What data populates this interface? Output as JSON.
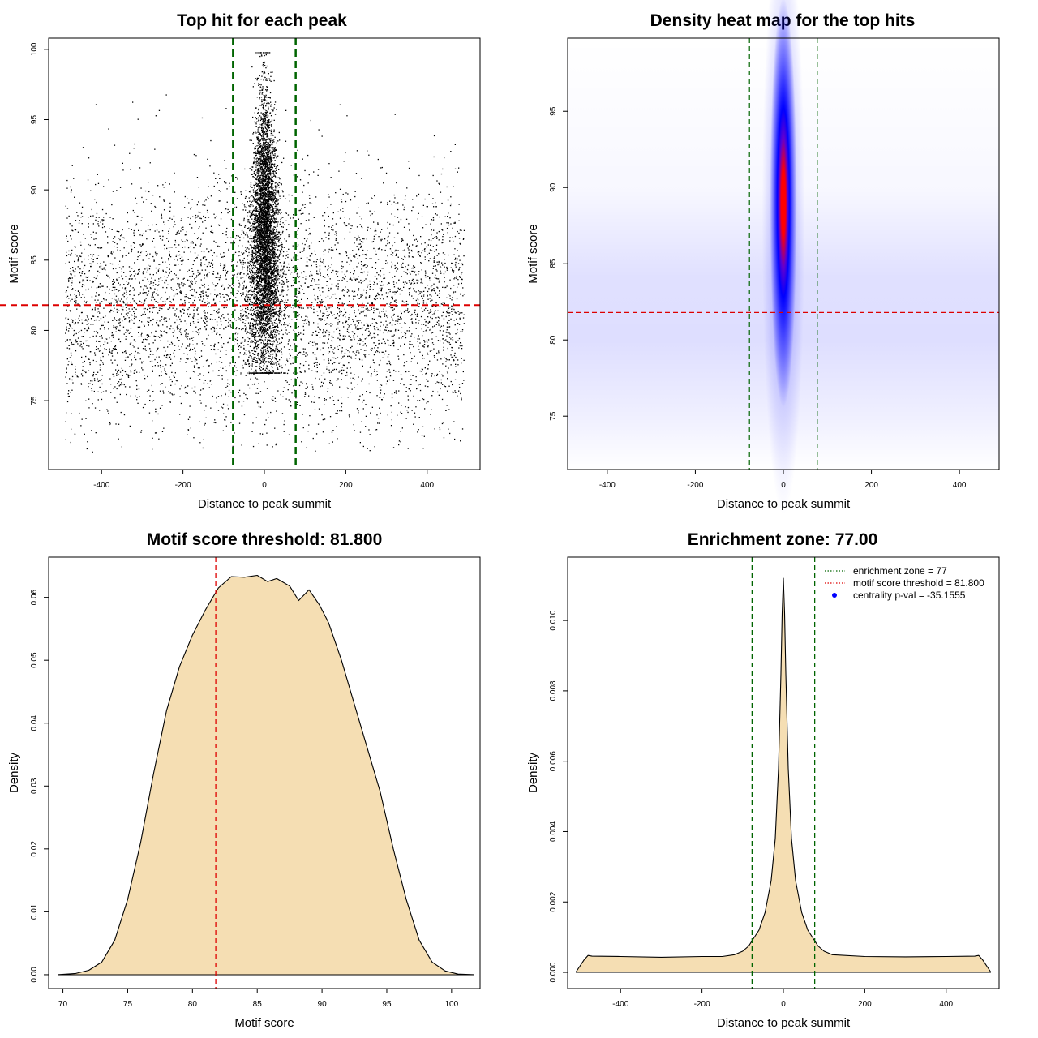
{
  "colors": {
    "scatter_point": "#000000",
    "threshold_line": "#dd0000",
    "zone_line": "#006400",
    "density_fill": "#f5deb3",
    "density_line": "#000000",
    "heat_low": "#ffffff",
    "heat_mid": "#0000ff",
    "heat_high": "#ff0000",
    "legend_dot": "#0000ff"
  },
  "chart_data": [
    {
      "id": "scatter",
      "type": "scatter",
      "title": "Top hit for each peak",
      "xlabel": "Distance to peak summit",
      "ylabel": "Motif score",
      "xlim": [
        -530,
        530
      ],
      "ylim": [
        70.1,
        100.8
      ],
      "xticks": [
        -400,
        -200,
        0,
        200,
        400
      ],
      "yticks": [
        75,
        80,
        85,
        90,
        95,
        100
      ],
      "threshold_y": 81.8,
      "zone_x": [
        -77,
        77
      ],
      "background": {
        "count": 5200,
        "x_range": [
          -490,
          490
        ],
        "y_mean": 81.8,
        "y_sd": 4.2,
        "y_range": [
          71.3,
          97.5
        ]
      },
      "central": {
        "count": 5200,
        "x_sd": 22,
        "y_mean": 86.5,
        "y_sd": 4.8,
        "y_range": [
          77,
          99.8
        ]
      }
    },
    {
      "id": "heatmap",
      "type": "heatmap",
      "title": "Density heat map for the top hits",
      "xlabel": "Distance to peak summit",
      "ylabel": "Motif score",
      "xlim": [
        -490,
        490
      ],
      "ylim": [
        71.5,
        99.8
      ],
      "xticks": [
        -400,
        -200,
        0,
        200,
        400
      ],
      "yticks": [
        75,
        80,
        85,
        90,
        95
      ],
      "threshold_y": 81.8,
      "zone_x": [
        -77,
        77
      ],
      "peak": {
        "x": 0,
        "y": 89,
        "x_sd": 16,
        "y_sd": 4.2
      },
      "background": {
        "y_mean": 81.8,
        "y_sd": 4
      }
    },
    {
      "id": "score-density",
      "type": "area",
      "title": "Motif score threshold: 81.800",
      "xlabel": "Motif score",
      "ylabel": "Density",
      "xlim": [
        68.9,
        102.2
      ],
      "ylim": [
        -0.0022,
        0.0664
      ],
      "xticks": [
        70,
        75,
        80,
        85,
        90,
        95,
        100
      ],
      "yticks": [
        0.0,
        0.01,
        0.02,
        0.03,
        0.04,
        0.05,
        0.06
      ],
      "ytick_labels": [
        "0.00",
        "0.01",
        "0.02",
        "0.03",
        "0.04",
        "0.05",
        "0.06"
      ],
      "threshold_x": 81.8,
      "x": [
        69.6,
        71,
        72,
        73,
        74,
        75,
        76,
        77,
        78,
        79,
        80,
        81,
        82,
        83,
        84,
        85,
        85.8,
        86.5,
        87.5,
        88.2,
        89,
        89.8,
        90.5,
        91.5,
        92.5,
        93.5,
        94.5,
        95.5,
        96.5,
        97.5,
        98.5,
        99.5,
        100.5,
        101.7
      ],
      "y": [
        0,
        0.0002,
        0.0007,
        0.002,
        0.0055,
        0.012,
        0.021,
        0.032,
        0.042,
        0.049,
        0.054,
        0.058,
        0.0615,
        0.0633,
        0.0632,
        0.0635,
        0.0625,
        0.063,
        0.0618,
        0.0595,
        0.0612,
        0.0588,
        0.056,
        0.05,
        0.043,
        0.036,
        0.029,
        0.02,
        0.012,
        0.0055,
        0.002,
        0.0006,
        0.0001,
        0
      ]
    },
    {
      "id": "distance-density",
      "type": "area",
      "title": "Enrichment zone: 77.00",
      "xlabel": "Distance to peak summit",
      "ylabel": "Density",
      "xlim": [
        -530,
        530
      ],
      "ylim": [
        -0.00046,
        0.0118
      ],
      "xticks": [
        -400,
        -200,
        0,
        200,
        400
      ],
      "yticks": [
        0.0,
        0.002,
        0.004,
        0.006,
        0.008,
        0.01
      ],
      "ytick_labels": [
        "0.000",
        "0.002",
        "0.004",
        "0.006",
        "0.008",
        "0.010"
      ],
      "zone_x": [
        -77,
        77
      ],
      "x": [
        -510,
        -490,
        -480,
        -470,
        -400,
        -300,
        -200,
        -150,
        -120,
        -100,
        -85,
        -77,
        -60,
        -45,
        -30,
        -20,
        -12,
        -6,
        -3,
        0,
        3,
        6,
        12,
        20,
        30,
        45,
        60,
        77,
        85,
        100,
        120,
        200,
        300,
        400,
        470,
        480,
        490,
        510
      ],
      "y": [
        0,
        0.00035,
        0.00048,
        0.00046,
        0.00045,
        0.00043,
        0.00045,
        0.00045,
        0.0005,
        0.0006,
        0.00075,
        0.0009,
        0.0012,
        0.0017,
        0.0026,
        0.0038,
        0.0058,
        0.0085,
        0.0102,
        0.0112,
        0.0102,
        0.0085,
        0.0058,
        0.0038,
        0.0026,
        0.0017,
        0.0012,
        0.0009,
        0.00075,
        0.0006,
        0.0005,
        0.00045,
        0.00044,
        0.00045,
        0.00046,
        0.00048,
        0.00035,
        0
      ]
    }
  ],
  "legend": {
    "items": [
      {
        "label": "enrichment zone = 77",
        "kind": "dotted-line",
        "color": "#006400"
      },
      {
        "label": "motif score threshold = 81.800",
        "kind": "dotted-line",
        "color": "#dd0000"
      },
      {
        "label": "centrality p-val = -35.1555",
        "kind": "dot",
        "color": "#0000ff"
      }
    ]
  }
}
